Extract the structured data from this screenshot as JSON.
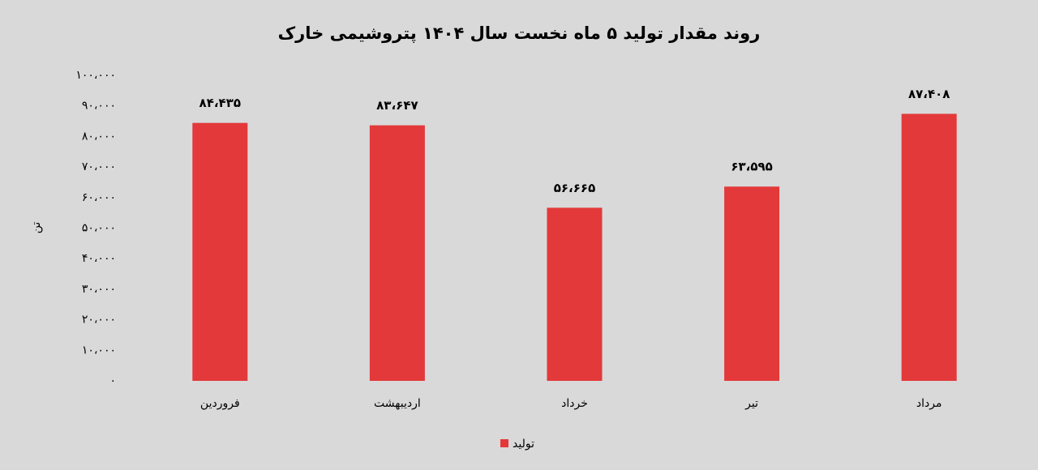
{
  "chart_data": {
    "type": "bar",
    "title": "روند مقدار تولید ۵ ماه نخست سال ۱۴۰۴ پتروشیمی خارک",
    "y_label": "تن",
    "categories": [
      "فروردین",
      "اردیبهشت",
      "خرداد",
      "تیر",
      "مرداد"
    ],
    "series": [
      {
        "name": "تولید",
        "color": "#e3393a",
        "values": [
          84435,
          83647,
          56665,
          63595,
          87408
        ],
        "value_labels": [
          "۸۴،۴۳۵",
          "۸۳،۶۴۷",
          "۵۶،۶۶۵",
          "۶۳،۵۹۵",
          "۸۷،۴۰۸"
        ]
      }
    ],
    "ylim": [
      0,
      100000
    ],
    "yticks": [
      {
        "value": 0,
        "label": "۰"
      },
      {
        "value": 10000,
        "label": "۱۰،۰۰۰"
      },
      {
        "value": 20000,
        "label": "۲۰،۰۰۰"
      },
      {
        "value": 30000,
        "label": "۳۰،۰۰۰"
      },
      {
        "value": 40000,
        "label": "۴۰،۰۰۰"
      },
      {
        "value": 50000,
        "label": "۵۰،۰۰۰"
      },
      {
        "value": 60000,
        "label": "۶۰،۰۰۰"
      },
      {
        "value": 70000,
        "label": "۷۰،۰۰۰"
      },
      {
        "value": 80000,
        "label": "۸۰،۰۰۰"
      },
      {
        "value": 90000,
        "label": "۹۰،۰۰۰"
      },
      {
        "value": 100000,
        "label": "۱۰۰،۰۰۰"
      }
    ],
    "grid": false,
    "legend": "bottom"
  }
}
